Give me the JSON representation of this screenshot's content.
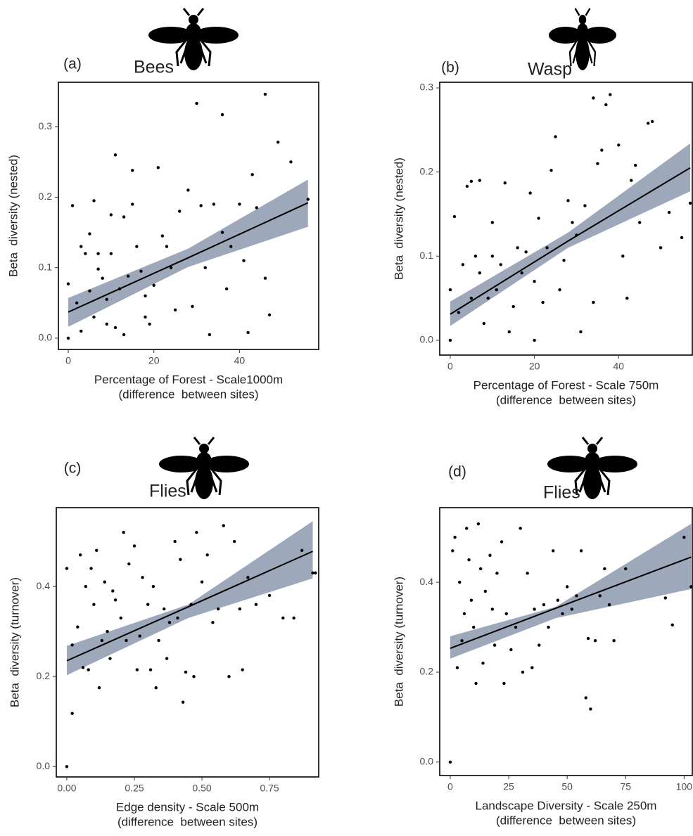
{
  "chart_data": [
    {
      "type": "scatter",
      "label": "(a)",
      "title": "Bees",
      "ylabel": "Beta  diversity (nested)",
      "xlabel": [
        "Percentage of Forest - Scale1000m",
        "(difference  between sites)"
      ],
      "xlim": [
        -2.3,
        58.5
      ],
      "xticks": [
        0,
        20,
        40
      ],
      "ylim": [
        -0.016,
        0.363
      ],
      "yticks": [
        {
          "value": 0,
          "label": "0.0"
        },
        0.1,
        0.2,
        0.3
      ],
      "color": "#000000",
      "band_color": "#9ea8bb",
      "x": [
        0,
        0,
        1,
        2,
        3,
        3,
        4,
        5,
        5,
        6,
        6,
        7,
        7,
        8,
        9,
        9,
        10,
        10,
        11,
        11,
        12,
        13,
        13,
        14,
        15,
        15,
        16,
        17,
        18,
        18,
        19,
        20,
        21,
        22,
        23,
        24,
        25,
        26,
        28,
        29,
        30,
        31,
        32,
        33,
        34,
        36,
        36,
        37,
        38,
        40,
        41,
        42,
        43,
        44,
        46,
        46,
        47,
        49,
        52,
        56
      ],
      "y": [
        0,
        0.077,
        0.188,
        0.05,
        0.01,
        0.13,
        0.12,
        0.067,
        0.148,
        0.03,
        0.195,
        0.098,
        0.12,
        0.085,
        0.02,
        0.055,
        0.175,
        0.12,
        0.26,
        0.015,
        0.07,
        0.005,
        0.172,
        0.088,
        0.238,
        0.19,
        0.13,
        0.095,
        0.06,
        0.03,
        0.02,
        0.075,
        0.242,
        0.145,
        0.13,
        0.1,
        0.04,
        0.18,
        0.21,
        0.045,
        0.333,
        0.188,
        0.1,
        0.005,
        0.19,
        0.317,
        0.15,
        0.07,
        0.13,
        0.19,
        0.11,
        0.008,
        0.232,
        0.185,
        0.346,
        0.085,
        0.033,
        0.278,
        0.25,
        0.197
      ],
      "fit": {
        "x": [
          0,
          28,
          56
        ],
        "y": [
          0.037,
          0.114,
          0.192
        ],
        "lower": [
          0.016,
          0.101,
          0.158
        ],
        "upper": [
          0.057,
          0.127,
          0.225
        ]
      }
    },
    {
      "type": "scatter",
      "label": "(b)",
      "title": "Wasp",
      "ylabel": "Beta  diversity (nested)",
      "xlabel": [
        "Percentage of Forest - Scale 750m",
        "(difference  between sites)"
      ],
      "xlim": [
        -2.5,
        57.5
      ],
      "xticks": [
        0,
        20,
        40
      ],
      "ylim": [
        -0.0176,
        0.3067
      ],
      "yticks": [
        {
          "value": 0,
          "label": "0.0"
        },
        0.1,
        0.2,
        0.3
      ],
      "color": "#000000",
      "band_color": "#9ea8bb",
      "x": [
        0,
        0,
        1,
        2,
        3,
        4,
        5,
        5,
        6,
        7,
        7,
        8,
        9,
        10,
        10,
        11,
        12,
        13,
        14,
        15,
        16,
        17,
        18,
        19,
        20,
        20,
        21,
        22,
        23,
        24,
        25,
        26,
        27,
        28,
        29,
        30,
        31,
        32,
        34,
        34,
        35,
        36,
        37,
        38,
        40,
        41,
        42,
        43,
        44,
        45,
        47,
        48,
        50,
        52,
        55,
        57
      ],
      "y": [
        0,
        0.06,
        0.147,
        0.033,
        0.09,
        0.183,
        0.189,
        0.05,
        0.1,
        0.19,
        0.08,
        0.02,
        0.05,
        0.14,
        0.1,
        0.06,
        0.09,
        0.187,
        0.01,
        0.04,
        0.11,
        0.08,
        0.105,
        0.175,
        0,
        0.07,
        0.145,
        0.045,
        0.11,
        0.202,
        0.242,
        0.06,
        0.095,
        0.166,
        0.14,
        0.125,
        0.01,
        0.16,
        0.288,
        0.045,
        0.21,
        0.226,
        0.28,
        0.292,
        0.232,
        0.1,
        0.05,
        0.19,
        0.208,
        0.14,
        0.258,
        0.26,
        0.11,
        0.152,
        0.122,
        0.163
      ],
      "fit": {
        "x": [
          0,
          28,
          57
        ],
        "y": [
          0.031,
          0.118,
          0.205
        ],
        "lower": [
          0.017,
          0.11,
          0.177
        ],
        "upper": [
          0.046,
          0.128,
          0.234
        ]
      }
    },
    {
      "type": "scatter",
      "label": "(c)",
      "title": "Flies",
      "ylabel": "Beta  diversity (turnover)",
      "xlabel": [
        "Edge density - Scale 500m",
        "(difference  between sites)"
      ],
      "xlim": [
        -0.039,
        0.932
      ],
      "xticks": [
        {
          "value": 0,
          "label": "0.00"
        },
        0.25,
        {
          "value": 0.5,
          "label": "0.50"
        },
        0.75
      ],
      "ylim": [
        -0.023,
        0.575
      ],
      "yticks": [
        {
          "value": 0,
          "label": "0.0"
        },
        0.2,
        0.4
      ],
      "color": "#000000",
      "band_color": "#9ea8bb",
      "x": [
        0,
        0,
        0.02,
        0.02,
        0.04,
        0.05,
        0.06,
        0.07,
        0.08,
        0.09,
        0.1,
        0.11,
        0.12,
        0.13,
        0.14,
        0.15,
        0.16,
        0.17,
        0.18,
        0.2,
        0.21,
        0.22,
        0.23,
        0.25,
        0.26,
        0.27,
        0.28,
        0.3,
        0.31,
        0.32,
        0.33,
        0.34,
        0.36,
        0.37,
        0.38,
        0.4,
        0.41,
        0.42,
        0.43,
        0.44,
        0.46,
        0.47,
        0.48,
        0.5,
        0.52,
        0.54,
        0.56,
        0.58,
        0.6,
        0.62,
        0.64,
        0.65,
        0.67,
        0.7,
        0.75,
        0.8,
        0.84,
        0.87,
        0.91,
        0.92
      ],
      "y": [
        0,
        0.44,
        0.118,
        0.27,
        0.31,
        0.47,
        0.22,
        0.4,
        0.215,
        0.44,
        0.36,
        0.48,
        0.175,
        0.28,
        0.41,
        0.3,
        0.24,
        0.39,
        0.37,
        0.33,
        0.52,
        0.28,
        0.45,
        0.49,
        0.215,
        0.29,
        0.42,
        0.36,
        0.215,
        0.4,
        0.175,
        0.28,
        0.35,
        0.24,
        0.32,
        0.5,
        0.33,
        0.46,
        0.143,
        0.21,
        0.36,
        0.2,
        0.52,
        0.41,
        0.47,
        0.32,
        0.35,
        0.535,
        0.2,
        0.5,
        0.35,
        0.215,
        0.42,
        0.36,
        0.38,
        0.33,
        0.33,
        0.48,
        0.43,
        0.43
      ],
      "fit": {
        "x": [
          0,
          0.45,
          0.91
        ],
        "y": [
          0.235,
          0.355,
          0.478
        ],
        "lower": [
          0.203,
          0.33,
          0.418
        ],
        "upper": [
          0.268,
          0.36,
          0.545
        ]
      }
    },
    {
      "type": "scatter",
      "label": "(d)",
      "title": "Flies",
      "ylabel": "Beta  diversity (turnover)",
      "xlabel": [
        "Landscape Diversity - Scale 250m",
        "(difference  between sites)"
      ],
      "xlim": [
        -4.5,
        103.5
      ],
      "xticks": [
        0,
        25,
        50,
        75,
        100
      ],
      "ylim": [
        -0.03,
        0.566
      ],
      "yticks": [
        {
          "value": 0,
          "label": "0.0"
        },
        0.2,
        0.4
      ],
      "color": "#000000",
      "band_color": "#9ea8bb",
      "x": [
        0,
        1,
        2,
        3,
        4,
        5,
        6,
        7,
        8,
        9,
        10,
        11,
        12,
        13,
        14,
        15,
        17,
        18,
        19,
        20,
        22,
        23,
        24,
        26,
        28,
        30,
        31,
        33,
        35,
        36,
        38,
        40,
        42,
        44,
        46,
        48,
        50,
        52,
        54,
        56,
        58,
        59,
        60,
        62,
        64,
        66,
        68,
        70,
        75,
        92,
        95,
        100,
        103
      ],
      "y": [
        0,
        0.47,
        0.5,
        0.21,
        0.4,
        0.27,
        0.33,
        0.52,
        0.45,
        0.36,
        0.3,
        0.175,
        0.53,
        0.43,
        0.22,
        0.38,
        0.46,
        0.34,
        0.26,
        0.42,
        0.49,
        0.175,
        0.33,
        0.25,
        0.3,
        0.52,
        0.2,
        0.42,
        0.21,
        0.34,
        0.26,
        0.35,
        0.3,
        0.47,
        0.36,
        0.33,
        0.39,
        0.34,
        0.37,
        0.47,
        0.143,
        0.275,
        0.118,
        0.27,
        0.37,
        0.43,
        0.35,
        0.27,
        0.43,
        0.365,
        0.305,
        0.5,
        0.39
      ],
      "fit": {
        "x": [
          0,
          45,
          103
        ],
        "y": [
          0.253,
          0.342,
          0.456
        ],
        "lower": [
          0.23,
          0.32,
          0.385
        ],
        "upper": [
          0.28,
          0.345,
          0.53
        ]
      }
    }
  ]
}
